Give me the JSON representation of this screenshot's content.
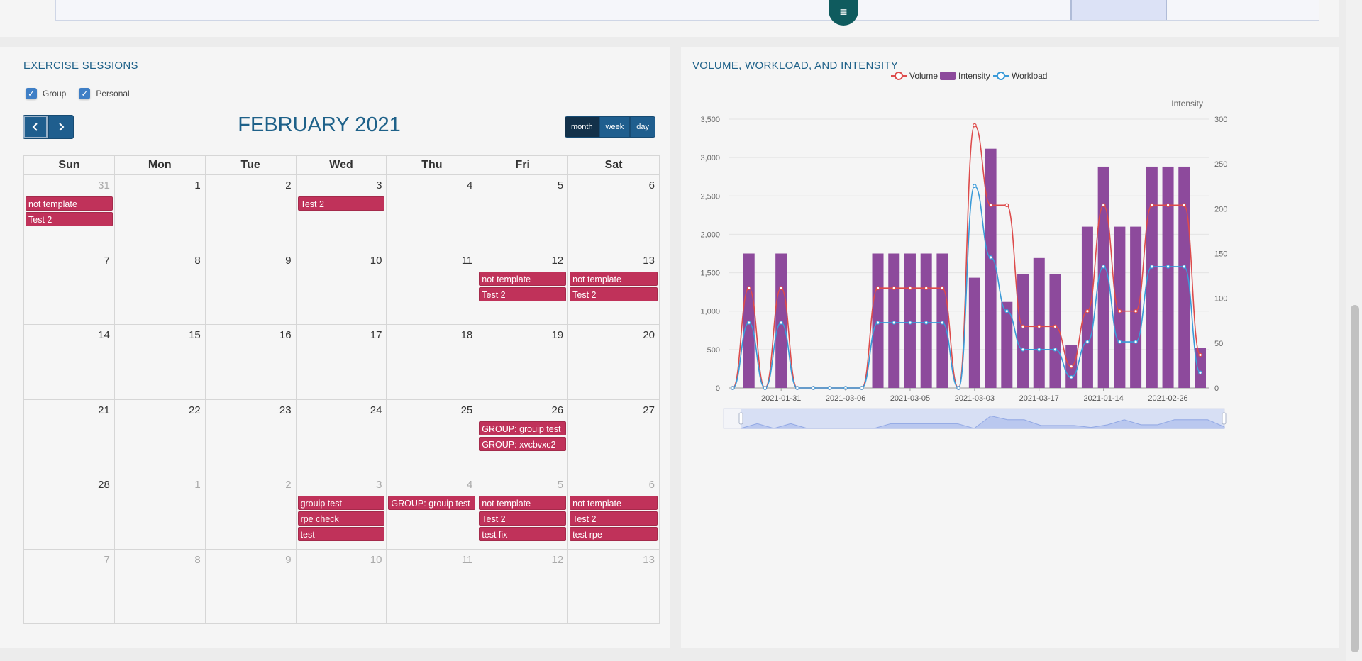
{
  "calendar_card": {
    "title": "EXERCISE SESSIONS",
    "filters": [
      {
        "label": "Group",
        "checked": true
      },
      {
        "label": "Personal",
        "checked": true
      }
    ],
    "month_title": "FEBRUARY 2021",
    "views": [
      {
        "label": "month",
        "active": true
      },
      {
        "label": "week",
        "active": false
      },
      {
        "label": "day",
        "active": false
      }
    ],
    "weekdays": [
      "Sun",
      "Mon",
      "Tue",
      "Wed",
      "Thu",
      "Fri",
      "Sat"
    ],
    "weeks": [
      [
        {
          "n": "31",
          "other": true,
          "events": [
            "not template",
            "Test 2"
          ]
        },
        {
          "n": "1",
          "other": false,
          "events": []
        },
        {
          "n": "2",
          "other": false,
          "events": []
        },
        {
          "n": "3",
          "other": false,
          "events": [
            "Test 2"
          ]
        },
        {
          "n": "4",
          "other": false,
          "events": []
        },
        {
          "n": "5",
          "other": false,
          "events": []
        },
        {
          "n": "6",
          "other": false,
          "events": []
        }
      ],
      [
        {
          "n": "7",
          "other": false,
          "events": []
        },
        {
          "n": "8",
          "other": false,
          "events": []
        },
        {
          "n": "9",
          "other": false,
          "events": []
        },
        {
          "n": "10",
          "other": false,
          "events": []
        },
        {
          "n": "11",
          "other": false,
          "events": []
        },
        {
          "n": "12",
          "other": false,
          "events": [
            "not template",
            "Test 2"
          ]
        },
        {
          "n": "13",
          "other": false,
          "events": [
            "not template",
            "Test 2"
          ]
        }
      ],
      [
        {
          "n": "14",
          "other": false,
          "events": []
        },
        {
          "n": "15",
          "other": false,
          "events": []
        },
        {
          "n": "16",
          "other": false,
          "events": []
        },
        {
          "n": "17",
          "other": false,
          "events": []
        },
        {
          "n": "18",
          "other": false,
          "events": []
        },
        {
          "n": "19",
          "other": false,
          "events": []
        },
        {
          "n": "20",
          "other": false,
          "events": []
        }
      ],
      [
        {
          "n": "21",
          "other": false,
          "events": []
        },
        {
          "n": "22",
          "other": false,
          "events": []
        },
        {
          "n": "23",
          "other": false,
          "events": []
        },
        {
          "n": "24",
          "other": false,
          "events": []
        },
        {
          "n": "25",
          "other": false,
          "events": []
        },
        {
          "n": "26",
          "other": false,
          "events": [
            "GROUP: grouip test",
            "GROUP: xvcbvxc2"
          ]
        },
        {
          "n": "27",
          "other": false,
          "events": []
        }
      ],
      [
        {
          "n": "28",
          "other": false,
          "events": []
        },
        {
          "n": "1",
          "other": true,
          "events": []
        },
        {
          "n": "2",
          "other": true,
          "events": []
        },
        {
          "n": "3",
          "other": true,
          "events": [
            "grouip test",
            "rpe check",
            "test"
          ]
        },
        {
          "n": "4",
          "other": true,
          "events": [
            "GROUP: grouip test"
          ]
        },
        {
          "n": "5",
          "other": true,
          "events": [
            "not template",
            "Test 2",
            "test fix"
          ]
        },
        {
          "n": "6",
          "other": true,
          "events": [
            "not template",
            "Test 2",
            "test rpe"
          ]
        }
      ],
      [
        {
          "n": "7",
          "other": true,
          "events": []
        },
        {
          "n": "8",
          "other": true,
          "events": []
        },
        {
          "n": "9",
          "other": true,
          "events": []
        },
        {
          "n": "10",
          "other": true,
          "events": []
        },
        {
          "n": "11",
          "other": true,
          "events": []
        },
        {
          "n": "12",
          "other": true,
          "events": []
        },
        {
          "n": "13",
          "other": true,
          "events": []
        }
      ]
    ]
  },
  "chart_card": {
    "title": "VOLUME, WORKLOAD, AND INTENSITY"
  },
  "top_bar": {
    "menu_icon": "hamburger-menu-icon"
  },
  "chart_data": {
    "type": "bar",
    "legend": [
      "Volume",
      "Intensity",
      "Workload"
    ],
    "legend_position": "top-center",
    "y_left": {
      "ticks": [
        "0",
        "500",
        "1,000",
        "1,500",
        "2,000",
        "2,500",
        "3,000",
        "3,500"
      ],
      "lim": [
        0,
        3500
      ]
    },
    "y_right": {
      "label": "Intensity",
      "ticks": [
        "0",
        "50",
        "100",
        "150",
        "200",
        "250",
        "300"
      ],
      "lim": [
        0,
        300
      ]
    },
    "x_ticks": [
      "2021-01-31",
      "2021-03-06",
      "2021-03-05",
      "2021-03-03",
      "2021-03-17",
      "2021-01-14",
      "2021-02-26"
    ],
    "grid": true,
    "colors": {
      "Volume": "#dd4b4b",
      "Intensity": "#8d4a9c",
      "Workload": "#3a9ad8"
    },
    "series": [
      {
        "name": "Intensity",
        "type": "bar",
        "values": [
          0,
          150,
          0,
          150,
          0,
          0,
          0,
          0,
          0,
          150,
          150,
          150,
          150,
          150,
          0,
          123,
          267,
          96,
          127,
          145,
          127,
          48,
          180,
          247,
          180,
          180,
          247,
          247,
          247,
          45
        ]
      },
      {
        "name": "Volume",
        "type": "line",
        "values": [
          0,
          1300,
          0,
          1300,
          0,
          0,
          0,
          0,
          0,
          1300,
          1300,
          1300,
          1300,
          1300,
          0,
          3420,
          2380,
          2380,
          800,
          800,
          800,
          280,
          1000,
          2380,
          1000,
          1000,
          2380,
          2380,
          2380,
          430
        ]
      },
      {
        "name": "Workload",
        "type": "line",
        "values": [
          0,
          850,
          0,
          850,
          0,
          0,
          0,
          0,
          0,
          850,
          850,
          850,
          850,
          850,
          0,
          2630,
          1700,
          1000,
          500,
          500,
          500,
          140,
          600,
          1580,
          600,
          600,
          1580,
          1580,
          1580,
          200
        ]
      }
    ]
  }
}
